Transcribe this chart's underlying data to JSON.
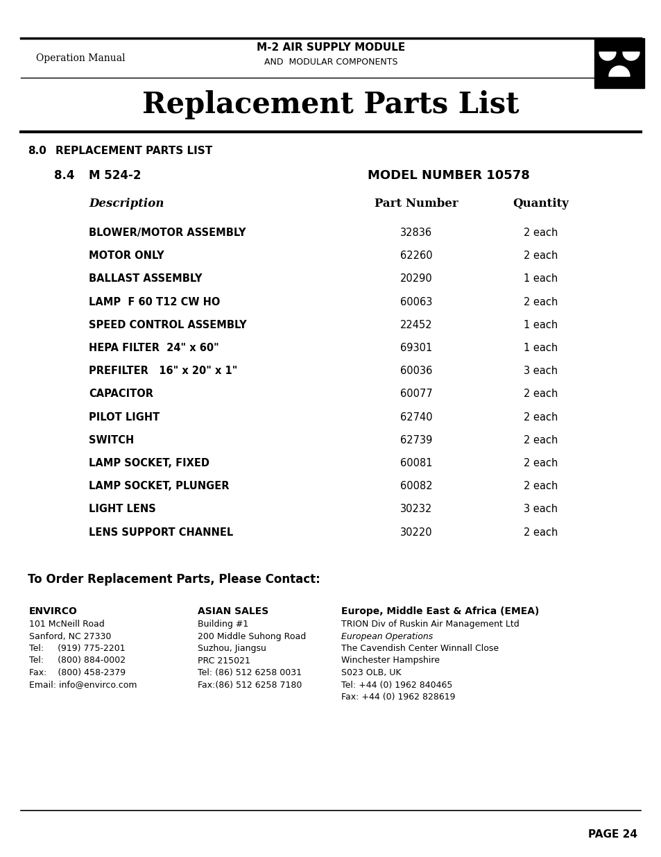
{
  "bg_color": "#ffffff",
  "header_line1": "M-2 AIR SUPPLY MODULE",
  "header_line2": "AND  MODULAR COMPONENTS",
  "header_left": "Operation Manual",
  "page_title": "Replacement Parts List",
  "section_num": "8.0",
  "section_title": "REPLACEMENT PARTS LIST",
  "subsection_num": "8.4",
  "subsection_title": "M 524-2",
  "model_label": "MODEL NUMBER 10578",
  "col_headers": [
    "Description",
    "Part Number",
    "Quantity"
  ],
  "parts": [
    [
      "BLOWER/MOTOR ASSEMBLY",
      "32836",
      "2 each"
    ],
    [
      "MOTOR ONLY",
      "62260",
      "2 each"
    ],
    [
      "BALLAST ASSEMBLY",
      "20290",
      "1 each"
    ],
    [
      "LAMP  F 60 T12 CW HO",
      "60063",
      "2 each"
    ],
    [
      "SPEED CONTROL ASSEMBLY",
      "22452",
      "1 each"
    ],
    [
      "HEPA FILTER  24\" x 60\"",
      "69301",
      "1 each"
    ],
    [
      "PREFILTER   16\" x 20\" x 1\"",
      "60036",
      "3 each"
    ],
    [
      "CAPACITOR",
      "60077",
      "2 each"
    ],
    [
      "PILOT LIGHT",
      "62740",
      "2 each"
    ],
    [
      "SWITCH",
      "62739",
      "2 each"
    ],
    [
      "LAMP SOCKET, FIXED",
      "60081",
      "2 each"
    ],
    [
      "LAMP SOCKET, PLUNGER",
      "60082",
      "2 each"
    ],
    [
      "LIGHT LENS",
      "30232",
      "3 each"
    ],
    [
      "LENS SUPPORT CHANNEL",
      "30220",
      "2 each"
    ]
  ],
  "order_label": "To Order Replacement Parts, Please Contact:",
  "col1_header": "ENVIRCO",
  "col1_lines": [
    "101 McNeill Road",
    "Sanford, NC 27330",
    "Tel:     (919) 775-2201",
    "Tel:     (800) 884-0002",
    "Fax:    (800) 458-2379",
    "Email: info@envirco.com"
  ],
  "col2_header": "ASIAN SALES",
  "col2_lines": [
    "Building #1",
    "200 Middle Suhong Road",
    "Suzhou, Jiangsu",
    "PRC 215021",
    "Tel: (86) 512 6258 0031",
    "Fax:(86) 512 6258 7180"
  ],
  "col3_header": "Europe, Middle East & Africa (EMEA)",
  "col3_lines": [
    "TRION Div of Ruskin Air Management Ltd",
    "European Operations",
    "The Cavendish Center Winnall Close",
    "Winchester Hampshire",
    "S023 OLB, UK",
    "Tel: +44 (0) 1962 840465",
    "Fax: +44 (0) 1962 828619"
  ],
  "col3_italic_line": "European Operations",
  "page_num": "PAGE 24"
}
